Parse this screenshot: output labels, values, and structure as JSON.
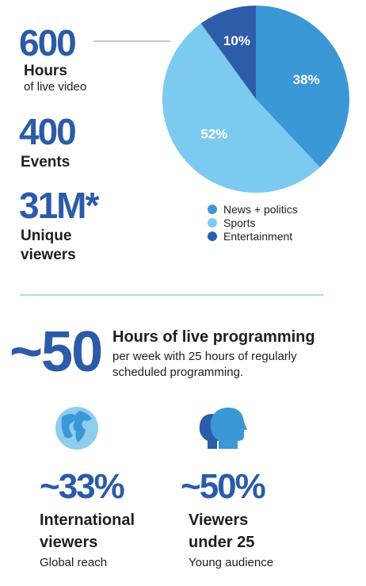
{
  "stats": [
    {
      "number": "600",
      "label": "Hours",
      "sublabel": "of live video"
    },
    {
      "number": "400",
      "label": "Events"
    },
    {
      "number": "31M*",
      "label": "Unique",
      "label2": "viewers"
    }
  ],
  "chart_data": {
    "type": "pie",
    "categories": [
      "News + politics",
      "Sports",
      "Entertainment"
    ],
    "values": [
      38,
      52,
      10
    ],
    "value_labels": [
      "38%",
      "52%",
      "10%"
    ],
    "colors": [
      "#3b98d6",
      "#7ccaef",
      "#2d5da9"
    ],
    "legend": "bottom"
  },
  "programming": {
    "number": "~50",
    "title": "Hours of live programming",
    "line1": "per week with 25 hours of regularly",
    "line2": "scheduled programming."
  },
  "highlights": [
    {
      "number": "~33%",
      "line1": "International",
      "line2": "viewers",
      "caption": "Global reach"
    },
    {
      "number": "~50%",
      "line1": "Viewers",
      "line2": "under 25",
      "caption": "Young audience"
    }
  ]
}
